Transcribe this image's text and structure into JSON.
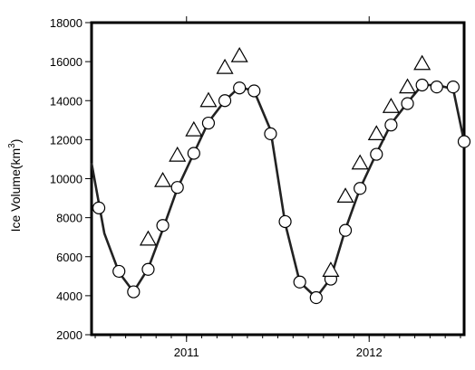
{
  "chart_data": {
    "type": "line",
    "title": "",
    "xlabel": "",
    "ylabel": "Ice Volume(km",
    "ylabel_superscript": "3",
    "ylabel_suffix": ")",
    "xlim": [
      2010.48,
      2012.52
    ],
    "ylim": [
      2000,
      18000
    ],
    "yticks": [
      2000,
      4000,
      6000,
      8000,
      10000,
      12000,
      14000,
      16000,
      18000
    ],
    "xticks_major": [
      2011,
      2012
    ],
    "xtick_labels": [
      "2011",
      "2012"
    ],
    "grid": false,
    "legend": "none",
    "series": [
      {
        "marker": "line",
        "x": [
          2010.48,
          2010.55,
          2010.63,
          2010.71,
          2010.79,
          2010.87,
          2010.95,
          2011.04,
          2011.12,
          2011.21,
          2011.29,
          2011.37,
          2011.46,
          2011.54,
          2011.62,
          2011.71,
          2011.79,
          2011.87,
          2011.95,
          2012.04,
          2012.12,
          2012.21,
          2012.29,
          2012.37,
          2012.46,
          2012.52
        ],
        "y": [
          10800,
          7200,
          5200,
          4200,
          5400,
          7400,
          9500,
          11300,
          12900,
          14000,
          14700,
          14500,
          12500,
          7700,
          4700,
          3900,
          4900,
          7400,
          9500,
          11300,
          12800,
          13900,
          14800,
          14800,
          14600,
          11900
        ]
      },
      {
        "marker": "circle",
        "x": [
          2010.52,
          2010.63,
          2010.71,
          2010.79,
          2010.87,
          2010.95,
          2011.04,
          2011.12,
          2011.21,
          2011.29,
          2011.37,
          2011.46,
          2011.54,
          2011.62,
          2011.71,
          2011.79,
          2011.87,
          2011.95,
          2012.04,
          2012.12,
          2012.21,
          2012.29,
          2012.37,
          2012.46,
          2012.52
        ],
        "y": [
          8500,
          5250,
          4200,
          5350,
          7600,
          9550,
          11300,
          12850,
          14000,
          14650,
          14500,
          12300,
          7800,
          4700,
          3900,
          4850,
          7350,
          9500,
          11250,
          12750,
          13850,
          14800,
          14700,
          14700,
          11900
        ]
      },
      {
        "marker": "triangle",
        "x": [
          2010.79,
          2010.87,
          2010.95,
          2011.04,
          2011.12,
          2011.21,
          2011.29,
          2011.79,
          2011.87,
          2011.95,
          2012.04,
          2012.12,
          2012.21,
          2012.29
        ],
        "y": [
          6900,
          9900,
          11200,
          12500,
          14000,
          15700,
          16300,
          5300,
          9100,
          10800,
          12300,
          13700,
          14700,
          15900
        ]
      }
    ]
  }
}
